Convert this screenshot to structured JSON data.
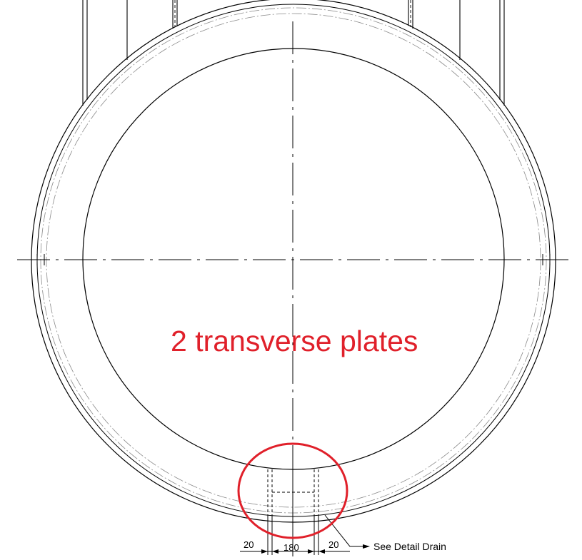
{
  "annotation": {
    "text": "2 transverse plates",
    "color": "#e0202a"
  },
  "dimensions": {
    "left_clearance": "20",
    "center_width": "180",
    "right_clearance": "20"
  },
  "callout": {
    "text": "See Detail Drain"
  },
  "colors": {
    "line": "#000000",
    "hidden_line": "#8a8a8a",
    "highlight": "#e0202a"
  }
}
